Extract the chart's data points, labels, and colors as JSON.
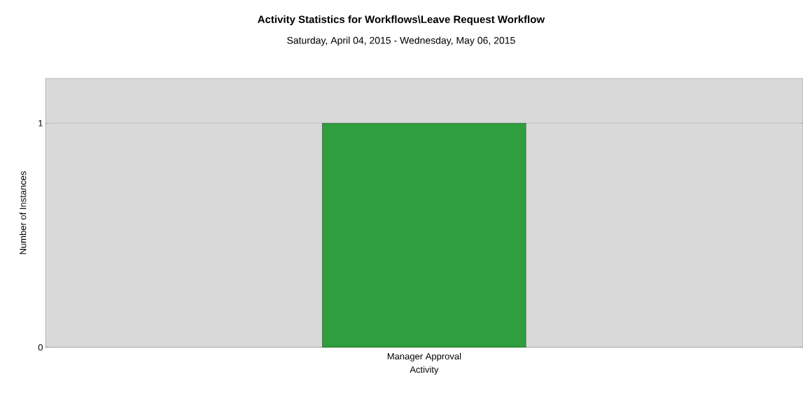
{
  "chart_data": {
    "type": "bar",
    "title": "Activity Statistics for Workflows\\Leave Request Workflow",
    "subtitle": "Saturday, April 04, 2015 - Wednesday, May 06, 2015",
    "xlabel": "Activity",
    "ylabel": "Number of Instances",
    "categories": [
      "Manager Approval"
    ],
    "values": [
      1
    ],
    "color": "#2e9e3e",
    "ylim": [
      0,
      1.2
    ],
    "yticks": [
      0,
      1
    ],
    "grid": "y"
  }
}
